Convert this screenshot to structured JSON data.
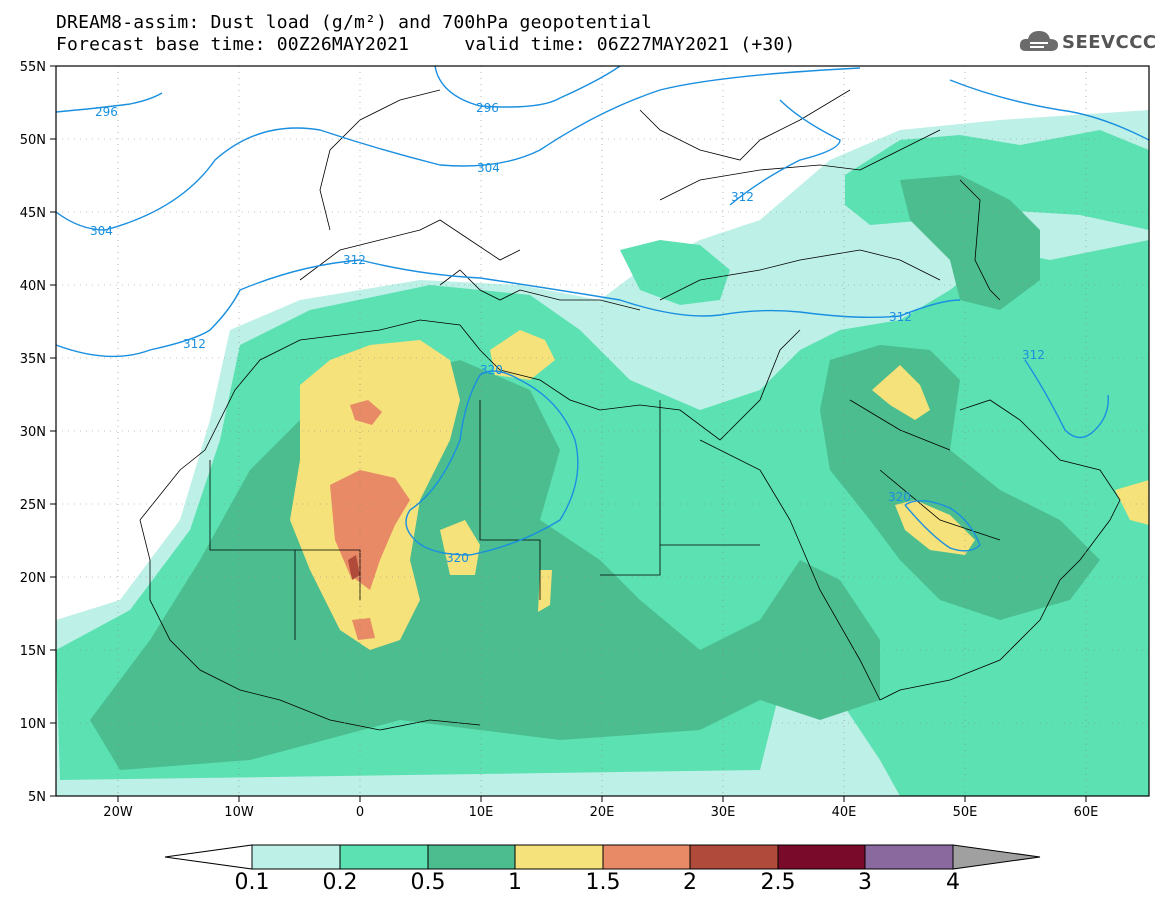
{
  "header": {
    "title_line1": "DREAM8-assim: Dust load (g/m²) and 700hPa geopotential",
    "title_line2": "Forecast base time: 00Z26MAY2021     valid time: 06Z27MAY2021 (+30)",
    "logo_text": "SEEVCCC",
    "logo_icon": "cloud-icon"
  },
  "axes": {
    "lat_labels": [
      "55N",
      "50N",
      "45N",
      "40N",
      "35N",
      "30N",
      "25N",
      "20N",
      "15N",
      "10N",
      "5N"
    ],
    "lon_labels": [
      "20W",
      "10W",
      "0",
      "10E",
      "20E",
      "30E",
      "40E",
      "50E",
      "60E"
    ]
  },
  "contour_labels": [
    "296",
    "296",
    "304",
    "304",
    "312",
    "312",
    "312",
    "312",
    "312",
    "320",
    "320",
    "320"
  ],
  "colorbar": {
    "levels": [
      "0.1",
      "0.2",
      "0.5",
      "1",
      "1.5",
      "2",
      "2.5",
      "3",
      "4"
    ],
    "colors": [
      "#bdf0e6",
      "#5ce1b3",
      "#4bbd8f",
      "#f5e27a",
      "#e88a66",
      "#b04a3a",
      "#7a0a2a",
      "#8a6a9e"
    ],
    "end_low": "#ffffff",
    "end_high": "#a0a0a0"
  },
  "colors": {
    "contour": "#1a8fe0",
    "land_border": "#000000"
  }
}
